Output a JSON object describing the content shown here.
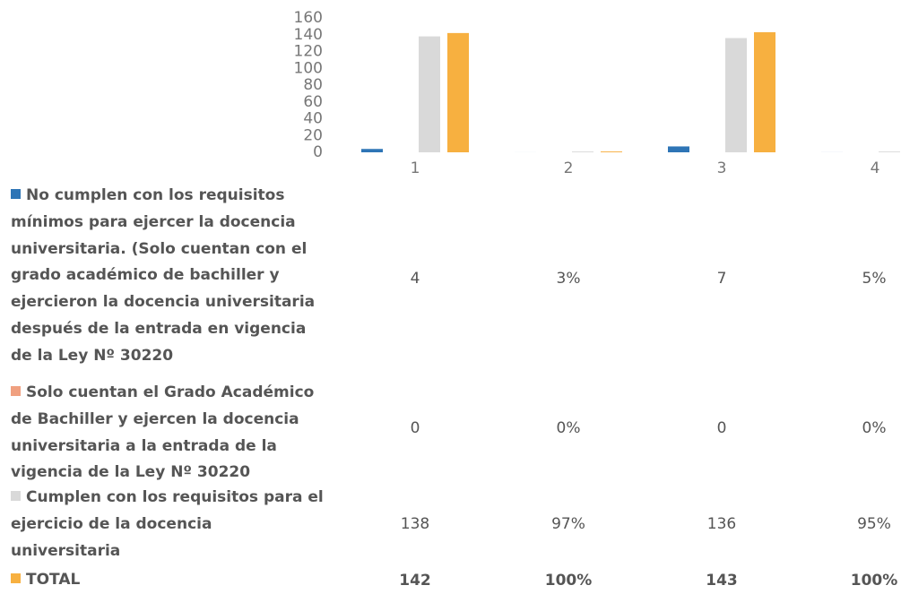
{
  "chart_data": {
    "type": "bar",
    "categories": [
      "1",
      "2",
      "3",
      "4"
    ],
    "ylim": [
      0,
      160
    ],
    "yticks": [
      0,
      20,
      40,
      60,
      80,
      100,
      120,
      140,
      160
    ],
    "series": [
      {
        "name": "No cumplen con los requisitos mínimos para ejercer la docencia universitaria. (Solo cuentan con el grado académico de bachiller y ejercieron la docencia universitaria después de la entrada en vigencia de la Ley Nº 30220",
        "color": "#2e75b6",
        "values": [
          4,
          0.03,
          7,
          0.05
        ],
        "value_labels": [
          "4",
          "3%",
          "7",
          "5%"
        ]
      },
      {
        "name": "Solo cuentan el Grado Académico de Bachiller y ejercen la docencia universitaria a la entrada de la vigencia de la Ley Nº 30220",
        "color": "#f0a080",
        "values": [
          0,
          0,
          0,
          0
        ],
        "value_labels": [
          "0",
          "0%",
          "0",
          "0%"
        ]
      },
      {
        "name": "Cumplen con los requisitos para el ejercicio de la docencia universitaria",
        "color": "#d9d9d9",
        "values": [
          138,
          0.97,
          136,
          0.95
        ],
        "value_labels": [
          "138",
          "97%",
          "136",
          "95%"
        ]
      },
      {
        "name": "TOTAL",
        "color": "#f7b040",
        "values": [
          142,
          1,
          143,
          1
        ],
        "value_labels": [
          "142",
          "100%",
          "143",
          "100%"
        ]
      }
    ]
  }
}
